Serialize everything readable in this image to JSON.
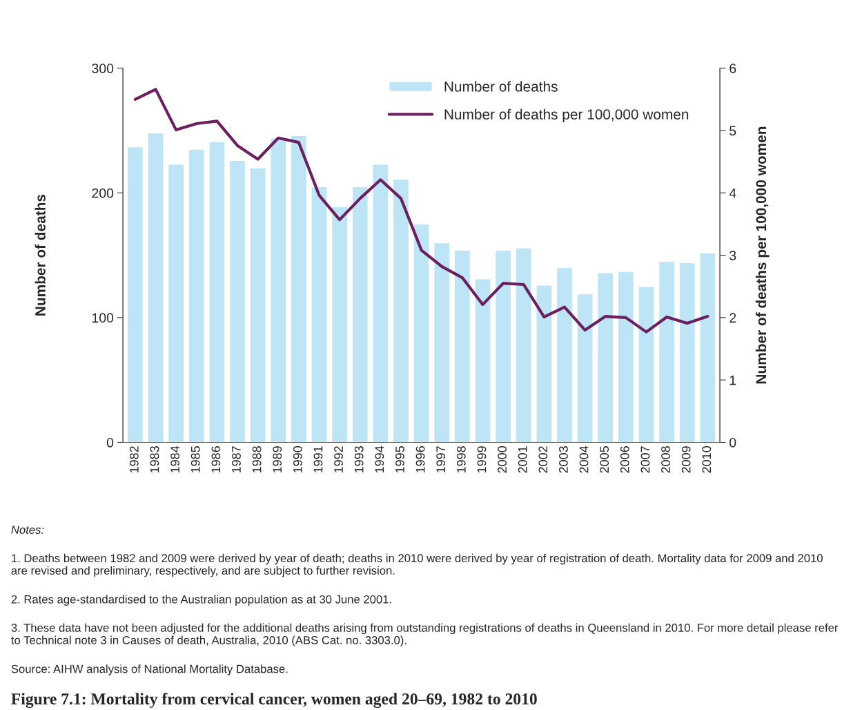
{
  "chart_data": {
    "type": "bar",
    "title": "Figure 7.1: Mortality from cervical cancer, women aged 20–69, 1982 to 2010",
    "categories": [
      "1982",
      "1983",
      "1984",
      "1985",
      "1986",
      "1987",
      "1988",
      "1989",
      "1990",
      "1991",
      "1992",
      "1993",
      "1994",
      "1995",
      "1996",
      "1997",
      "1998",
      "1999",
      "2000",
      "2001",
      "2002",
      "2003",
      "2004",
      "2005",
      "2006",
      "2007",
      "2008",
      "2009",
      "2010"
    ],
    "series": [
      {
        "name": "Number of deaths",
        "color": "#bde5f5",
        "values": [
          237,
          248,
          223,
          235,
          241,
          226,
          220,
          244,
          246,
          205,
          189,
          205,
          223,
          211,
          175,
          160,
          154,
          131,
          154,
          156,
          126,
          140,
          119,
          136,
          137,
          125,
          145,
          144,
          152
        ]
      },
      {
        "name": "Number of deaths per 100,000 women",
        "type": "line",
        "axis": "y2",
        "color": "#6b1f5e",
        "values": [
          5.5,
          5.66,
          5.01,
          5.11,
          5.15,
          4.76,
          4.54,
          4.88,
          4.81,
          3.96,
          3.57,
          3.91,
          4.21,
          3.91,
          3.08,
          2.82,
          2.64,
          2.21,
          2.55,
          2.53,
          2.01,
          2.17,
          1.8,
          2.02,
          2.0,
          1.77,
          2.01,
          1.91,
          2.02
        ]
      }
    ],
    "ylabel": "Number of deaths",
    "y2label": "Number of deaths per 100,000 women",
    "ylim": [
      0,
      300
    ],
    "yticks": [
      0,
      100,
      200,
      300
    ],
    "y2lim": [
      0,
      6
    ],
    "y2ticks": [
      0,
      1,
      2,
      3,
      4,
      5,
      6
    ],
    "legend": "top right",
    "grid": false,
    "marker": "none",
    "line_style": "solid",
    "annotations": [
      "Notes:",
      "1. Deaths between 1982 and 2009 were derived by year of death; deaths in 2010 were derived by year of registration of death. Mortality data for 2009 and 2010 are revised and preliminary, respectively, and are subject to further revision.",
      "2. Rates age-standardised to the Australian population as at 30 June 2001.",
      "3. These data have not been adjusted for the additional deaths arising from outstanding registrations of deaths in Queensland in 2010. For more detail please refer to Technical note 3 in Causes of death, Australia, 2010 (ABS Cat. no. 3303.0).",
      "Source: AIHW analysis of National Mortality Database."
    ]
  }
}
